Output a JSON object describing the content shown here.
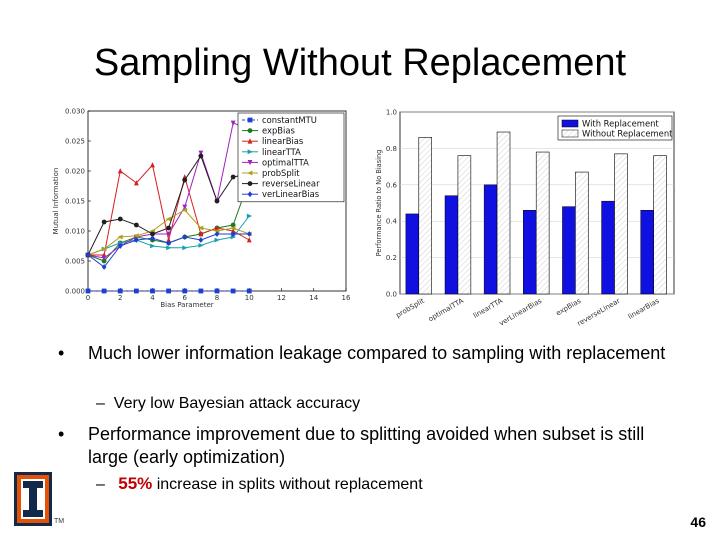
{
  "slide": {
    "title": "Sampling Without Replacement",
    "bullets": [
      {
        "text": "Much lower information leakage compared to sampling with replacement",
        "sub": "Very low Bayesian attack accuracy"
      },
      {
        "text": "Performance improvement due to splitting avoided when subset is still large (early optimization)",
        "sub_highlight": "55%",
        "sub_rest": " increase in splits without replacement"
      }
    ],
    "bullet_marker": "•",
    "sub_marker": "–",
    "page_number": "46",
    "tm_mark": "TM",
    "colors": {
      "highlight": "#c00000",
      "logo_orange": "#e35205",
      "logo_blue": "#13294b"
    }
  },
  "chart_data": [
    {
      "type": "line",
      "xlabel": "Bias Parameter",
      "ylabel": "Mutual Information",
      "xlim": [
        0,
        16
      ],
      "ylim": [
        0.0,
        0.03
      ],
      "xticks": [
        "0",
        "2",
        "4",
        "6",
        "8",
        "10",
        "12",
        "14",
        "16"
      ],
      "yticks": [
        "0.000",
        "0.005",
        "0.010",
        "0.015",
        "0.020",
        "0.025",
        "0.030"
      ],
      "x": [
        0,
        1,
        2,
        3,
        4,
        5,
        6,
        7,
        8,
        9,
        10
      ],
      "legend_position": "top-right",
      "series": [
        {
          "name": "constantMTU",
          "color": "#1f3fd0",
          "marker": "s",
          "values": [
            0.0,
            0.0,
            0.0,
            0.0,
            0.0,
            0.0,
            0.0,
            0.0,
            0.0,
            0.0,
            0.0
          ]
        },
        {
          "name": "expBias",
          "color": "#1a7a1a",
          "marker": "o",
          "values": [
            0.006,
            0.005,
            0.008,
            0.009,
            0.0085,
            0.008,
            0.009,
            0.0095,
            0.0105,
            0.011,
            0.0185
          ]
        },
        {
          "name": "linearBias",
          "color": "#d42020",
          "marker": "^",
          "values": [
            0.006,
            0.006,
            0.02,
            0.018,
            0.021,
            0.0085,
            0.019,
            0.0095,
            0.0105,
            0.01,
            0.0085
          ]
        },
        {
          "name": "linearTTA",
          "color": "#18a0b0",
          "marker": ">",
          "values": [
            0.006,
            0.007,
            0.008,
            0.0085,
            0.0075,
            0.0072,
            0.0072,
            0.0076,
            0.0085,
            0.009,
            0.0125
          ]
        },
        {
          "name": "optimalTTA",
          "color": "#a020c0",
          "marker": "v",
          "values": [
            0.006,
            0.0055,
            0.0075,
            0.009,
            0.0095,
            0.0095,
            0.014,
            0.023,
            0.015,
            0.028,
            0.027
          ]
        },
        {
          "name": "probSplit",
          "color": "#b0a018",
          "marker": "<",
          "values": [
            0.006,
            0.007,
            0.009,
            0.0092,
            0.01,
            0.012,
            0.0135,
            0.0105,
            0.01,
            0.0105,
            0.0095
          ]
        },
        {
          "name": "reverseLinear",
          "color": "#202020",
          "marker": "o",
          "values": [
            0.006,
            0.0115,
            0.012,
            0.011,
            0.0095,
            0.0105,
            0.0185,
            0.0225,
            0.015,
            0.019,
            0.0195
          ]
        },
        {
          "name": "verLinearBias",
          "color": "#1f3fd0",
          "marker": "d",
          "values": [
            0.006,
            0.004,
            0.0075,
            0.0085,
            0.0088,
            0.008,
            0.009,
            0.0085,
            0.0095,
            0.0095,
            0.0095
          ]
        }
      ]
    },
    {
      "type": "bar",
      "ylabel": "Performance Ratio to No Biasing",
      "ylim": [
        0.0,
        1.0
      ],
      "yticks": [
        "0.0",
        "0.2",
        "0.4",
        "0.6",
        "0.8",
        "1.0"
      ],
      "categories": [
        "probSplit",
        "optimalTTA",
        "linearTTA",
        "verLinearBias",
        "expBias",
        "reverseLinear",
        "linearBias"
      ],
      "legend_position": "top-right",
      "series": [
        {
          "name": "With Replacement",
          "color": "#1010e0",
          "values": [
            0.44,
            0.54,
            0.6,
            0.46,
            0.48,
            0.51,
            0.46
          ]
        },
        {
          "name": "Without Replacement",
          "color": "#ffffff",
          "values": [
            0.86,
            0.76,
            0.89,
            0.78,
            0.67,
            0.77,
            0.76
          ]
        }
      ]
    }
  ]
}
